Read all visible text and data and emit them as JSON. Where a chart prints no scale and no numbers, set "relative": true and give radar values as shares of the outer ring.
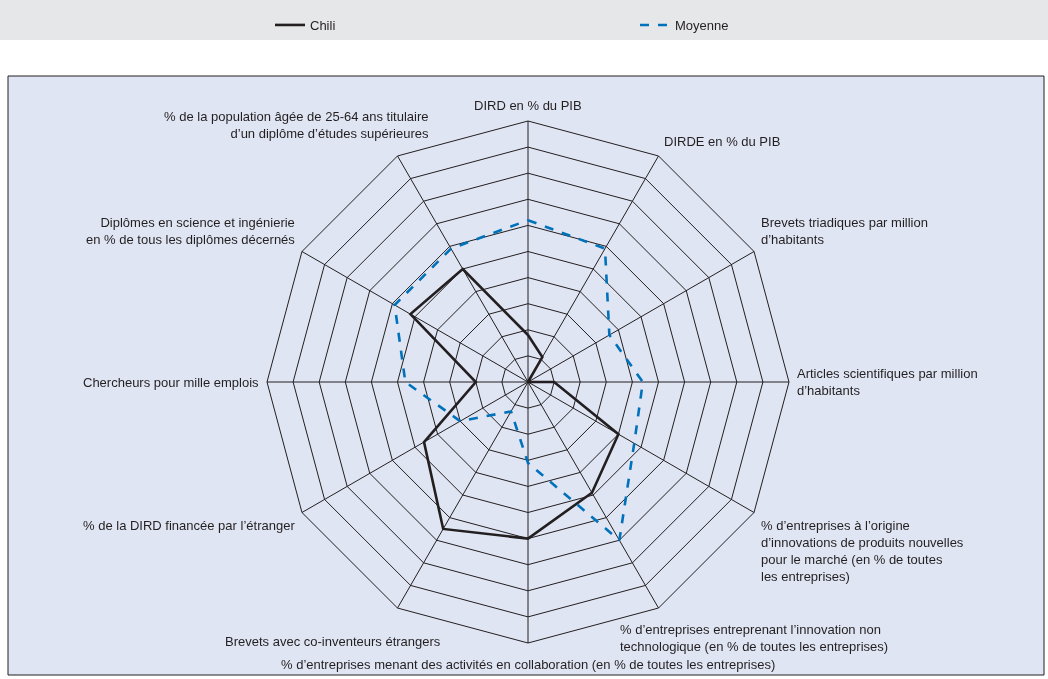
{
  "chart_data": {
    "type": "radar",
    "relative": true,
    "categories": [
      "DIRD en % du PIB",
      "DIRDE en % du PIB",
      "Brevets triadiques par million\nd’habitants",
      "Articles scientifiques par million\nd’habitants",
      "% d’entreprises à l’origine\nd’innovations de produits nouvelles\npour le marché (en % de toutes\nles entreprises)",
      "% d’entreprises entreprenant l’innovation non\ntechnologique (en % de toutes les entreprises)",
      "% d’entreprises menant des activités en collaboration (en % de toutes les entreprises)",
      "Brevets avec co-inventeurs étrangers",
      "% de la DIRD financée par l’étranger",
      "Chercheurs pour mille emplois",
      "Diplômes en science et ingénierie\nen % de tous les diplômes décernés",
      "% de la population âgée de 25-64 ans titulaire\nd’un diplôme d’études supérieures"
    ],
    "series": [
      {
        "name": "Chili",
        "color": "#231f20",
        "line_style": "solid",
        "values": [
          0.18,
          0.11,
          0,
          0.1,
          0.4,
          0.49,
          0.6,
          0.65,
          0.46,
          0.2,
          0.52,
          0.5
        ]
      },
      {
        "name": "Moyenne",
        "color": "#0072bc",
        "line_style": "dashed",
        "values": [
          0.62,
          0.59,
          0.36,
          0.44,
          0.47,
          0.7,
          0.31,
          0.13,
          0.3,
          0.47,
          0.59,
          0.59
        ]
      }
    ],
    "grid": true,
    "legend": "top",
    "marker": "none"
  }
}
